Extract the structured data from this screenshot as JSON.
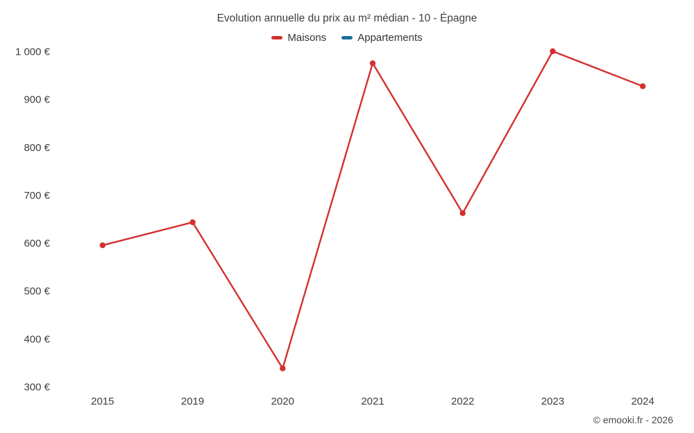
{
  "chart_data": {
    "type": "line",
    "title": "Evolution annuelle du prix au m² médian - 10 - Épagne",
    "categories": [
      "2015",
      "2019",
      "2020",
      "2021",
      "2022",
      "2023",
      "2024"
    ],
    "series": [
      {
        "name": "Maisons",
        "color": "#d32f2f",
        "values": [
          595,
          643,
          338,
          975,
          662,
          1000,
          927
        ]
      },
      {
        "name": "Appartements",
        "color": "#1a6e9c",
        "values": []
      }
    ],
    "xlabel": "",
    "ylabel": "",
    "ylim": [
      300,
      1000
    ],
    "ytick_step": 100,
    "ytick_suffix": " €",
    "legend_position": "top",
    "grid": false
  },
  "footer": {
    "copyright": "© emooki.fr - 2026"
  }
}
